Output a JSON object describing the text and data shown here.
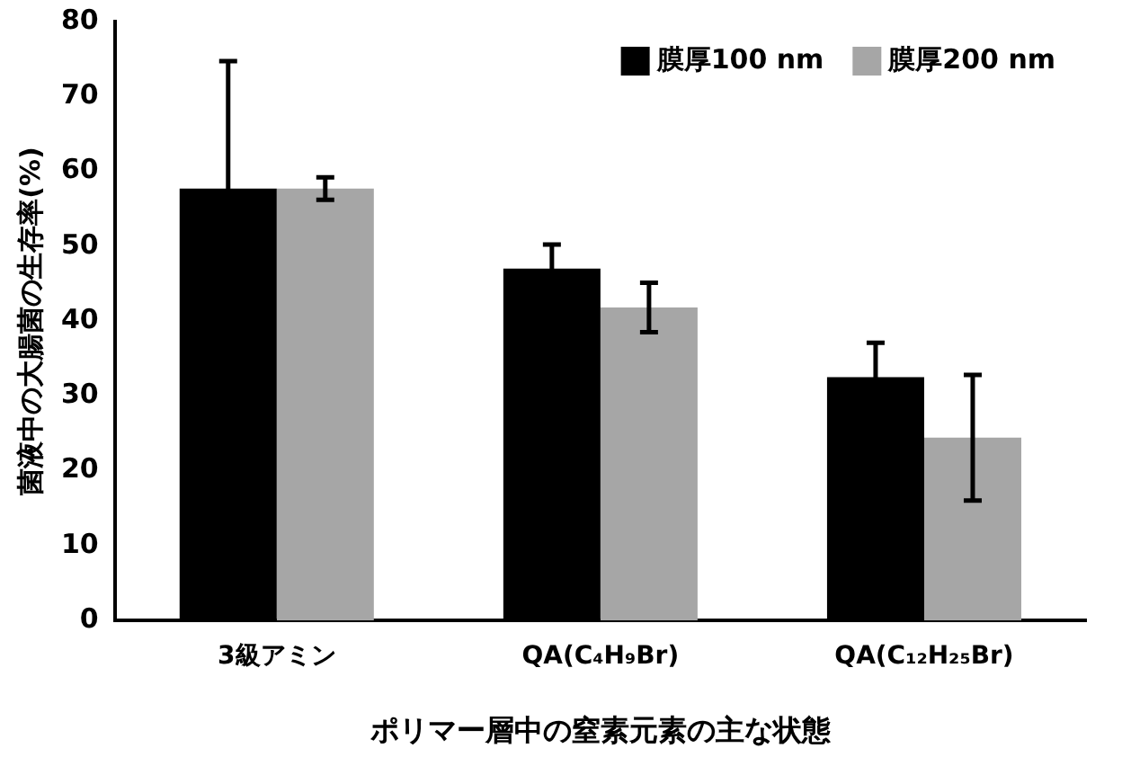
{
  "chart_data": {
    "type": "bar",
    "xlabel": "ポリマー層中の窒素元素の主な状態",
    "ylabel": "菌液中の大腸菌の生存率(%)",
    "categories": [
      "3級アミン",
      "QA(C₄H₉Br)",
      "QA(C₁₂H₂₅Br)"
    ],
    "series": [
      {
        "name": "膜厚100 nm",
        "color": "#000000",
        "values": [
          57.7,
          47,
          32.5
        ],
        "errors": [
          17,
          3.2,
          4.6
        ]
      },
      {
        "name": "膜厚200 nm",
        "color": "#a6a6a6",
        "values": [
          57.7,
          41.8,
          24.4
        ],
        "errors": [
          1.5,
          3.3,
          8.4
        ]
      }
    ],
    "ylim": [
      0,
      80
    ],
    "yticks": [
      0,
      10,
      20,
      30,
      40,
      50,
      60,
      70,
      80
    ],
    "grid": false,
    "legend": "top right"
  }
}
